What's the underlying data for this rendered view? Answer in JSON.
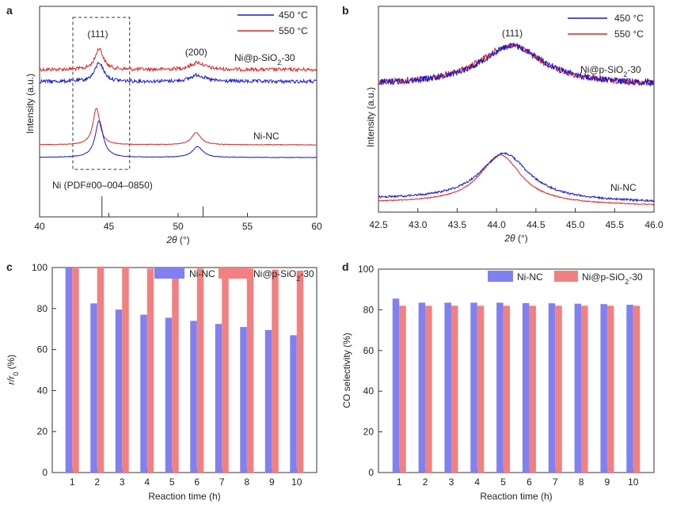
{
  "panels": {
    "a": {
      "letter": "a",
      "chart_data": {
        "type": "line",
        "xlabel_var": "2θ",
        "xlabel_unit": "(°)",
        "ylabel": "Intensity (a.u.)",
        "xlim": [
          40,
          60
        ],
        "xticks": [
          "40",
          "45",
          "50",
          "55",
          "60"
        ],
        "legend": [
          {
            "name": "450 °C",
            "color": "#1a1acc"
          },
          {
            "name": "550 °C",
            "color": "#dd2222"
          }
        ],
        "sample_labels": {
          "top": "Ni@p-SiO",
          "top_sub": "2",
          "top_suffix": "-30",
          "bottom": "Ni-NC"
        },
        "peak_labels": [
          {
            "text": "(111)",
            "x": 44.2
          },
          {
            "text": "(200)",
            "x": 51.3
          }
        ],
        "reference": {
          "label": "Ni (PDF#00–004–0850)",
          "lines": [
            44.5,
            51.8
          ]
        },
        "series": [
          {
            "name": "Ni@p-SiO2-30 550 °C",
            "color": "#dd2222",
            "peaks": [
              {
                "x": 44.3,
                "h": 0.45,
                "w": 0.35
              },
              {
                "x": 51.4,
                "h": 0.15,
                "w": 0.6
              }
            ]
          },
          {
            "name": "Ni@p-SiO2-30 450 °C",
            "color": "#1a1acc",
            "peaks": [
              {
                "x": 44.3,
                "h": 0.4,
                "w": 0.38
              },
              {
                "x": 51.4,
                "h": 0.14,
                "w": 0.6
              }
            ]
          },
          {
            "name": "Ni-NC 550 °C",
            "color": "#dd2222",
            "peaks": [
              {
                "x": 44.1,
                "h": 0.75,
                "w": 0.3
              },
              {
                "x": 51.3,
                "h": 0.25,
                "w": 0.4
              }
            ]
          },
          {
            "name": "Ni-NC 450 °C",
            "color": "#1a1acc",
            "peaks": [
              {
                "x": 44.3,
                "h": 0.75,
                "w": 0.35
              },
              {
                "x": 51.4,
                "h": 0.22,
                "w": 0.45
              }
            ]
          }
        ]
      }
    },
    "b": {
      "letter": "b",
      "chart_data": {
        "type": "line",
        "xlabel_var": "2θ",
        "xlabel_unit": "(°)",
        "ylabel": "Intensity (a.u.)",
        "xlim": [
          42.5,
          46.0
        ],
        "xticks": [
          "42.5",
          "43.0",
          "43.5",
          "44.0",
          "44.5",
          "45.0",
          "45.5",
          "46.0"
        ],
        "legend": [
          {
            "name": "450 °C",
            "color": "#1a1acc"
          },
          {
            "name": "550 °C",
            "color": "#dd2222"
          }
        ],
        "sample_labels": {
          "top": "Ni@p-SiO",
          "top_sub": "2",
          "top_suffix": "-30",
          "bottom": "Ni-NC"
        },
        "peak_labels": [
          {
            "text": "(111)",
            "x": 44.2
          }
        ],
        "series": [
          {
            "name": "Ni@p-SiO2-30 550 °C",
            "color": "#dd2222",
            "center": 44.18,
            "width": 0.5
          },
          {
            "name": "Ni@p-SiO2-30 450 °C",
            "color": "#1a1acc",
            "center": 44.2,
            "width": 0.5
          },
          {
            "name": "Ni-NC 550 °C",
            "color": "#dd2222",
            "center": 44.05,
            "width": 0.32
          },
          {
            "name": "Ni-NC 450 °C",
            "color": "#1a1acc",
            "center": 44.1,
            "width": 0.38
          }
        ]
      }
    },
    "c": {
      "letter": "c",
      "chart_data": {
        "type": "bar",
        "categories": [
          "1",
          "2",
          "3",
          "4",
          "5",
          "6",
          "7",
          "8",
          "9",
          "10"
        ],
        "xlabel": "Reaction time (h)",
        "ylabel_main": "r/r",
        "ylabel_sub": "0",
        "ylabel_unit": "(%)",
        "ylim": [
          0,
          100
        ],
        "yticks": [
          "0",
          "20",
          "40",
          "60",
          "80",
          "100"
        ],
        "series": [
          {
            "name": "Ni-NC",
            "color": "#8080f0",
            "values": [
              100,
              82.5,
              79.5,
              77,
              75.5,
              74,
              72.5,
              71,
              69.5,
              67
            ]
          },
          {
            "name": "Ni@p-SiO",
            "name_sub": "2",
            "name_suffix": "-30",
            "color": "#f28080",
            "values": [
              100,
              100.5,
              100,
              99.5,
              99.5,
              99.5,
              98,
              99.5,
              99,
              98.5
            ]
          }
        ]
      }
    },
    "d": {
      "letter": "d",
      "chart_data": {
        "type": "bar",
        "categories": [
          "1",
          "2",
          "3",
          "4",
          "5",
          "6",
          "7",
          "8",
          "9",
          "10"
        ],
        "xlabel": "Reaction time (h)",
        "ylabel": "CO selectivity (%)",
        "ylim": [
          0,
          100
        ],
        "yticks": [
          "0",
          "20",
          "40",
          "60",
          "80",
          "100"
        ],
        "series": [
          {
            "name": "Ni-NC",
            "color": "#8080f0",
            "values": [
              85.5,
              83.5,
              83.5,
              83.5,
              83.5,
              83.3,
              83.2,
              83,
              82.8,
              82.5
            ]
          },
          {
            "name": "Ni@p-SiO",
            "name_sub": "2",
            "name_suffix": "-30",
            "color": "#f28080",
            "values": [
              82,
              82,
              82,
              82,
              82,
              82,
              82,
              82,
              82,
              82
            ]
          }
        ]
      }
    }
  }
}
